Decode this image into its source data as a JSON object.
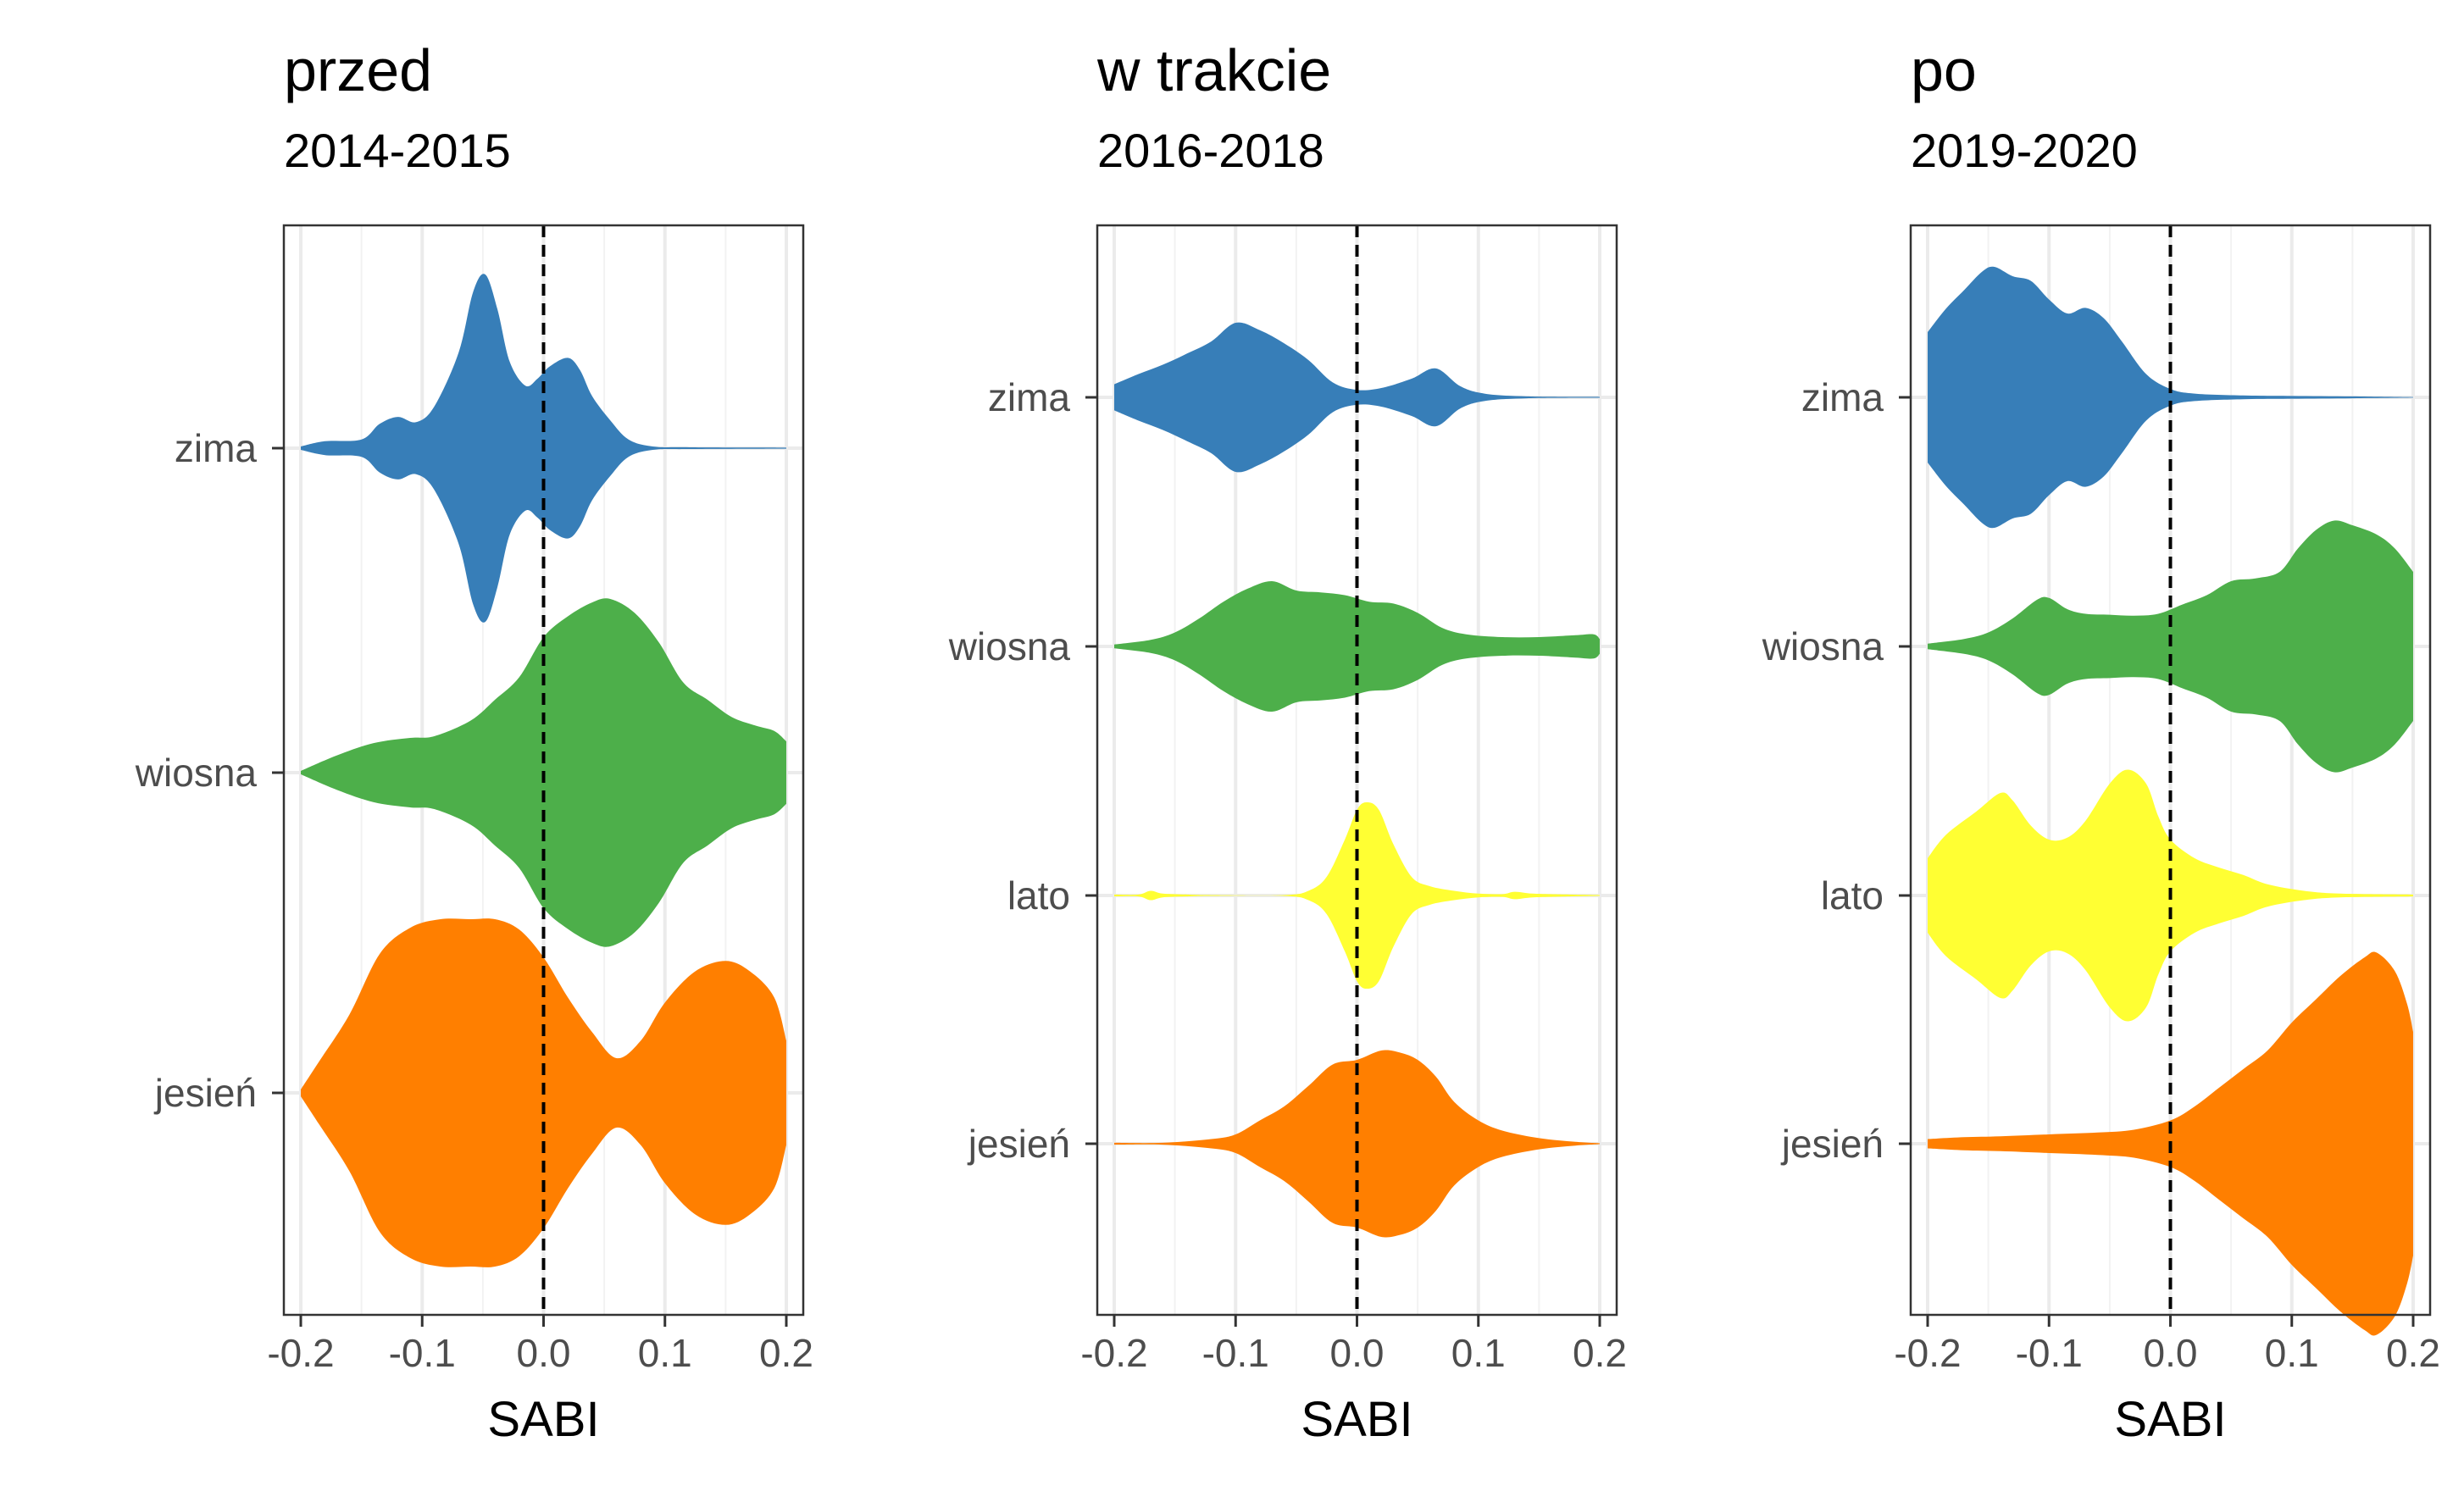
{
  "chart_data": [
    {
      "type": "violin",
      "title": "przed",
      "subtitle": "2014-2015",
      "xlabel": "SABI",
      "ylabel": "",
      "xlim": [
        -0.2,
        0.2
      ],
      "x_ticks": [
        "-0.2",
        "-0.1",
        "0.0",
        "0.1",
        "0.2"
      ],
      "reference_line_x": 0.0,
      "grid": true,
      "categories": [
        "zima",
        "wiosna",
        "jesień"
      ],
      "series": [
        {
          "category": "zima",
          "color": "#377EB8",
          "density": [
            [
              -0.2,
              0.01
            ],
            [
              -0.18,
              0.04
            ],
            [
              -0.15,
              0.05
            ],
            [
              -0.135,
              0.14
            ],
            [
              -0.12,
              0.18
            ],
            [
              -0.105,
              0.15
            ],
            [
              -0.09,
              0.24
            ],
            [
              -0.07,
              0.55
            ],
            [
              -0.058,
              0.9
            ],
            [
              -0.048,
              1.0
            ],
            [
              -0.038,
              0.8
            ],
            [
              -0.028,
              0.5
            ],
            [
              -0.015,
              0.36
            ],
            [
              -0.005,
              0.4
            ],
            [
              0.005,
              0.47
            ],
            [
              0.02,
              0.52
            ],
            [
              0.03,
              0.45
            ],
            [
              0.04,
              0.3
            ],
            [
              0.055,
              0.16
            ],
            [
              0.07,
              0.05
            ],
            [
              0.09,
              0.01
            ],
            [
              0.12,
              0.005
            ],
            [
              0.2,
              0.003
            ]
          ]
        },
        {
          "category": "wiosna",
          "color": "#4DAF4A",
          "density": [
            [
              -0.2,
              0.01
            ],
            [
              -0.17,
              0.1
            ],
            [
              -0.14,
              0.17
            ],
            [
              -0.11,
              0.2
            ],
            [
              -0.09,
              0.21
            ],
            [
              -0.06,
              0.3
            ],
            [
              -0.04,
              0.42
            ],
            [
              -0.02,
              0.55
            ],
            [
              0.0,
              0.78
            ],
            [
              0.02,
              0.9
            ],
            [
              0.04,
              0.98
            ],
            [
              0.055,
              1.0
            ],
            [
              0.075,
              0.92
            ],
            [
              0.095,
              0.75
            ],
            [
              0.115,
              0.52
            ],
            [
              0.135,
              0.42
            ],
            [
              0.155,
              0.32
            ],
            [
              0.175,
              0.27
            ],
            [
              0.19,
              0.24
            ],
            [
              0.2,
              0.18
            ]
          ]
        },
        {
          "category": "jesień",
          "color": "#FF7F00",
          "density": [
            [
              -0.2,
              0.02
            ],
            [
              -0.185,
              0.18
            ],
            [
              -0.16,
              0.45
            ],
            [
              -0.135,
              0.8
            ],
            [
              -0.11,
              0.95
            ],
            [
              -0.085,
              1.0
            ],
            [
              -0.06,
              1.0
            ],
            [
              -0.04,
              1.0
            ],
            [
              -0.02,
              0.94
            ],
            [
              0.0,
              0.78
            ],
            [
              0.02,
              0.55
            ],
            [
              0.04,
              0.35
            ],
            [
              0.06,
              0.2
            ],
            [
              0.08,
              0.3
            ],
            [
              0.1,
              0.52
            ],
            [
              0.125,
              0.7
            ],
            [
              0.15,
              0.76
            ],
            [
              0.17,
              0.7
            ],
            [
              0.19,
              0.55
            ],
            [
              0.2,
              0.3
            ]
          ]
        }
      ]
    },
    {
      "type": "violin",
      "title": "w trakcie",
      "subtitle": "2016-2018",
      "xlabel": "SABI",
      "ylabel": "",
      "xlim": [
        -0.2,
        0.2
      ],
      "x_ticks": [
        "-0.2",
        "-0.1",
        "0.0",
        "0.1",
        "0.2"
      ],
      "reference_line_x": 0.0,
      "grid": true,
      "categories": [
        "zima",
        "wiosna",
        "lato",
        "jesień"
      ],
      "series": [
        {
          "category": "zima",
          "color": "#377EB8",
          "density": [
            [
              -0.2,
              0.14
            ],
            [
              -0.18,
              0.25
            ],
            [
              -0.16,
              0.35
            ],
            [
              -0.14,
              0.47
            ],
            [
              -0.12,
              0.6
            ],
            [
              -0.1,
              0.8
            ],
            [
              -0.08,
              0.72
            ],
            [
              -0.06,
              0.58
            ],
            [
              -0.04,
              0.4
            ],
            [
              -0.02,
              0.16
            ],
            [
              0.0,
              0.08
            ],
            [
              0.02,
              0.1
            ],
            [
              0.045,
              0.2
            ],
            [
              0.065,
              0.31
            ],
            [
              0.085,
              0.12
            ],
            [
              0.105,
              0.04
            ],
            [
              0.14,
              0.01
            ],
            [
              0.2,
              0.005
            ]
          ]
        },
        {
          "category": "wiosna",
          "color": "#4DAF4A",
          "density": [
            [
              -0.2,
              0.02
            ],
            [
              -0.17,
              0.07
            ],
            [
              -0.15,
              0.15
            ],
            [
              -0.13,
              0.3
            ],
            [
              -0.11,
              0.48
            ],
            [
              -0.09,
              0.62
            ],
            [
              -0.07,
              0.7
            ],
            [
              -0.05,
              0.6
            ],
            [
              -0.03,
              0.58
            ],
            [
              -0.01,
              0.55
            ],
            [
              0.01,
              0.48
            ],
            [
              0.03,
              0.46
            ],
            [
              0.05,
              0.36
            ],
            [
              0.07,
              0.2
            ],
            [
              0.09,
              0.13
            ],
            [
              0.12,
              0.1
            ],
            [
              0.15,
              0.1
            ],
            [
              0.18,
              0.12
            ],
            [
              0.195,
              0.13
            ],
            [
              0.2,
              0.08
            ]
          ]
        },
        {
          "category": "lato",
          "color": "#FFFF33",
          "density": [
            [
              -0.2,
              0.01
            ],
            [
              -0.18,
              0.01
            ],
            [
              -0.17,
              0.05
            ],
            [
              -0.16,
              0.02
            ],
            [
              -0.14,
              0.01
            ],
            [
              -0.12,
              0.005
            ],
            [
              -0.06,
              0.005
            ],
            [
              -0.04,
              0.05
            ],
            [
              -0.025,
              0.2
            ],
            [
              -0.01,
              0.6
            ],
            [
              0.0,
              0.92
            ],
            [
              0.008,
              1.0
            ],
            [
              0.018,
              0.92
            ],
            [
              0.03,
              0.55
            ],
            [
              0.045,
              0.2
            ],
            [
              0.06,
              0.1
            ],
            [
              0.08,
              0.05
            ],
            [
              0.1,
              0.02
            ],
            [
              0.12,
              0.015
            ],
            [
              0.13,
              0.04
            ],
            [
              0.145,
              0.02
            ],
            [
              0.175,
              0.01
            ],
            [
              0.2,
              0.005
            ]
          ]
        },
        {
          "category": "jesień",
          "color": "#FF7F00",
          "density": [
            [
              -0.2,
              0.01
            ],
            [
              -0.16,
              0.01
            ],
            [
              -0.12,
              0.05
            ],
            [
              -0.1,
              0.1
            ],
            [
              -0.08,
              0.25
            ],
            [
              -0.06,
              0.4
            ],
            [
              -0.04,
              0.62
            ],
            [
              -0.02,
              0.85
            ],
            [
              0.0,
              0.9
            ],
            [
              0.02,
              1.0
            ],
            [
              0.035,
              0.98
            ],
            [
              0.05,
              0.9
            ],
            [
              0.065,
              0.72
            ],
            [
              0.08,
              0.45
            ],
            [
              0.1,
              0.25
            ],
            [
              0.12,
              0.14
            ],
            [
              0.15,
              0.06
            ],
            [
              0.18,
              0.02
            ],
            [
              0.2,
              0.005
            ]
          ]
        }
      ]
    },
    {
      "type": "violin",
      "title": "po",
      "subtitle": "2019-2020",
      "xlabel": "SABI",
      "ylabel": "",
      "xlim": [
        -0.2,
        0.2
      ],
      "x_ticks": [
        "-0.2",
        "-0.1",
        "0.0",
        "0.1",
        "0.2"
      ],
      "reference_line_x": 0.0,
      "grid": true,
      "categories": [
        "zima",
        "wiosna",
        "lato",
        "jesień"
      ],
      "series": [
        {
          "category": "zima",
          "color": "#377EB8",
          "density": [
            [
              -0.2,
              0.7
            ],
            [
              -0.185,
              0.95
            ],
            [
              -0.17,
              1.15
            ],
            [
              -0.155,
              1.35
            ],
            [
              -0.145,
              1.4
            ],
            [
              -0.13,
              1.3
            ],
            [
              -0.115,
              1.25
            ],
            [
              -0.1,
              1.05
            ],
            [
              -0.085,
              0.9
            ],
            [
              -0.07,
              0.96
            ],
            [
              -0.055,
              0.85
            ],
            [
              -0.04,
              0.6
            ],
            [
              -0.02,
              0.25
            ],
            [
              0.0,
              0.09
            ],
            [
              0.02,
              0.04
            ],
            [
              0.06,
              0.02
            ],
            [
              0.1,
              0.015
            ],
            [
              0.15,
              0.01
            ],
            [
              0.2,
              0.003
            ]
          ]
        },
        {
          "category": "wiosna",
          "color": "#4DAF4A",
          "density": [
            [
              -0.2,
              0.03
            ],
            [
              -0.17,
              0.08
            ],
            [
              -0.15,
              0.15
            ],
            [
              -0.13,
              0.3
            ],
            [
              -0.11,
              0.5
            ],
            [
              -0.1,
              0.52
            ],
            [
              -0.085,
              0.4
            ],
            [
              -0.07,
              0.35
            ],
            [
              -0.05,
              0.34
            ],
            [
              -0.03,
              0.33
            ],
            [
              -0.01,
              0.35
            ],
            [
              0.01,
              0.45
            ],
            [
              0.03,
              0.55
            ],
            [
              0.05,
              0.7
            ],
            [
              0.07,
              0.73
            ],
            [
              0.09,
              0.8
            ],
            [
              0.105,
              1.05
            ],
            [
              0.12,
              1.25
            ],
            [
              0.135,
              1.35
            ],
            [
              0.15,
              1.3
            ],
            [
              0.17,
              1.2
            ],
            [
              0.185,
              1.05
            ],
            [
              0.2,
              0.8
            ]
          ]
        },
        {
          "category": "lato",
          "color": "#FFFF33",
          "density": [
            [
              -0.2,
              0.4
            ],
            [
              -0.185,
              0.65
            ],
            [
              -0.16,
              0.9
            ],
            [
              -0.14,
              1.1
            ],
            [
              -0.13,
              1.02
            ],
            [
              -0.115,
              0.75
            ],
            [
              -0.1,
              0.6
            ],
            [
              -0.085,
              0.62
            ],
            [
              -0.07,
              0.8
            ],
            [
              -0.05,
              1.2
            ],
            [
              -0.035,
              1.35
            ],
            [
              -0.02,
              1.2
            ],
            [
              -0.01,
              0.85
            ],
            [
              0.0,
              0.6
            ],
            [
              0.02,
              0.4
            ],
            [
              0.04,
              0.3
            ],
            [
              0.06,
              0.22
            ],
            [
              0.08,
              0.12
            ],
            [
              0.11,
              0.05
            ],
            [
              0.14,
              0.02
            ],
            [
              0.2,
              0.01
            ]
          ]
        },
        {
          "category": "jesień",
          "color": "#FF7F00",
          "density": [
            [
              -0.2,
              0.05
            ],
            [
              -0.17,
              0.07
            ],
            [
              -0.14,
              0.08
            ],
            [
              -0.1,
              0.1
            ],
            [
              -0.06,
              0.12
            ],
            [
              -0.03,
              0.15
            ],
            [
              0.0,
              0.25
            ],
            [
              0.02,
              0.4
            ],
            [
              0.04,
              0.6
            ],
            [
              0.06,
              0.8
            ],
            [
              0.08,
              1.0
            ],
            [
              0.1,
              1.3
            ],
            [
              0.12,
              1.55
            ],
            [
              0.14,
              1.8
            ],
            [
              0.16,
              2.0
            ],
            [
              0.17,
              2.05
            ],
            [
              0.185,
              1.85
            ],
            [
              0.195,
              1.5
            ],
            [
              0.2,
              1.2
            ]
          ]
        }
      ]
    }
  ]
}
